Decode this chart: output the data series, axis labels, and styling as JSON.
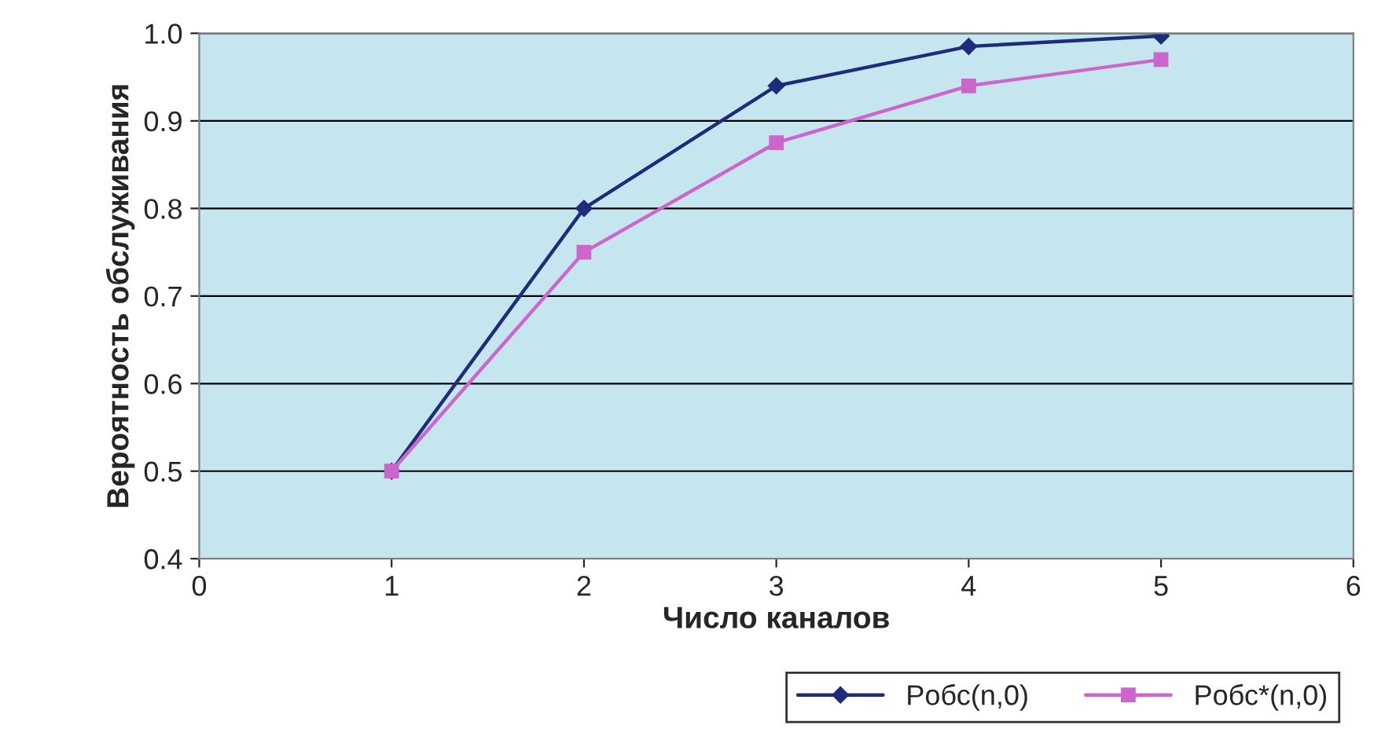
{
  "chart_data": {
    "type": "line",
    "xlabel": "Число каналов",
    "ylabel": "Вероятность обслуживания",
    "x": [
      1,
      2,
      3,
      4,
      5
    ],
    "series": [
      {
        "name": "Pобс(n,0)",
        "color": "#1f2c7a",
        "marker": "diamond",
        "values": [
          0.5,
          0.8,
          0.94,
          0.985,
          0.997
        ]
      },
      {
        "name": "Pобс*(n,0)",
        "color": "#cc66cc",
        "marker": "square",
        "values": [
          0.5,
          0.75,
          0.875,
          0.94,
          0.97
        ]
      }
    ],
    "xlim": [
      0,
      6
    ],
    "xticks": [
      0,
      1,
      2,
      3,
      4,
      5,
      6
    ],
    "ylim": [
      0.4,
      1.0
    ],
    "yticks": [
      0.4,
      0.5,
      0.6,
      0.7,
      0.8,
      0.9,
      {
        "value": 1.0,
        "label": "1.0"
      }
    ],
    "grid": "y",
    "legend": "bottom right",
    "line_style": "solid"
  }
}
